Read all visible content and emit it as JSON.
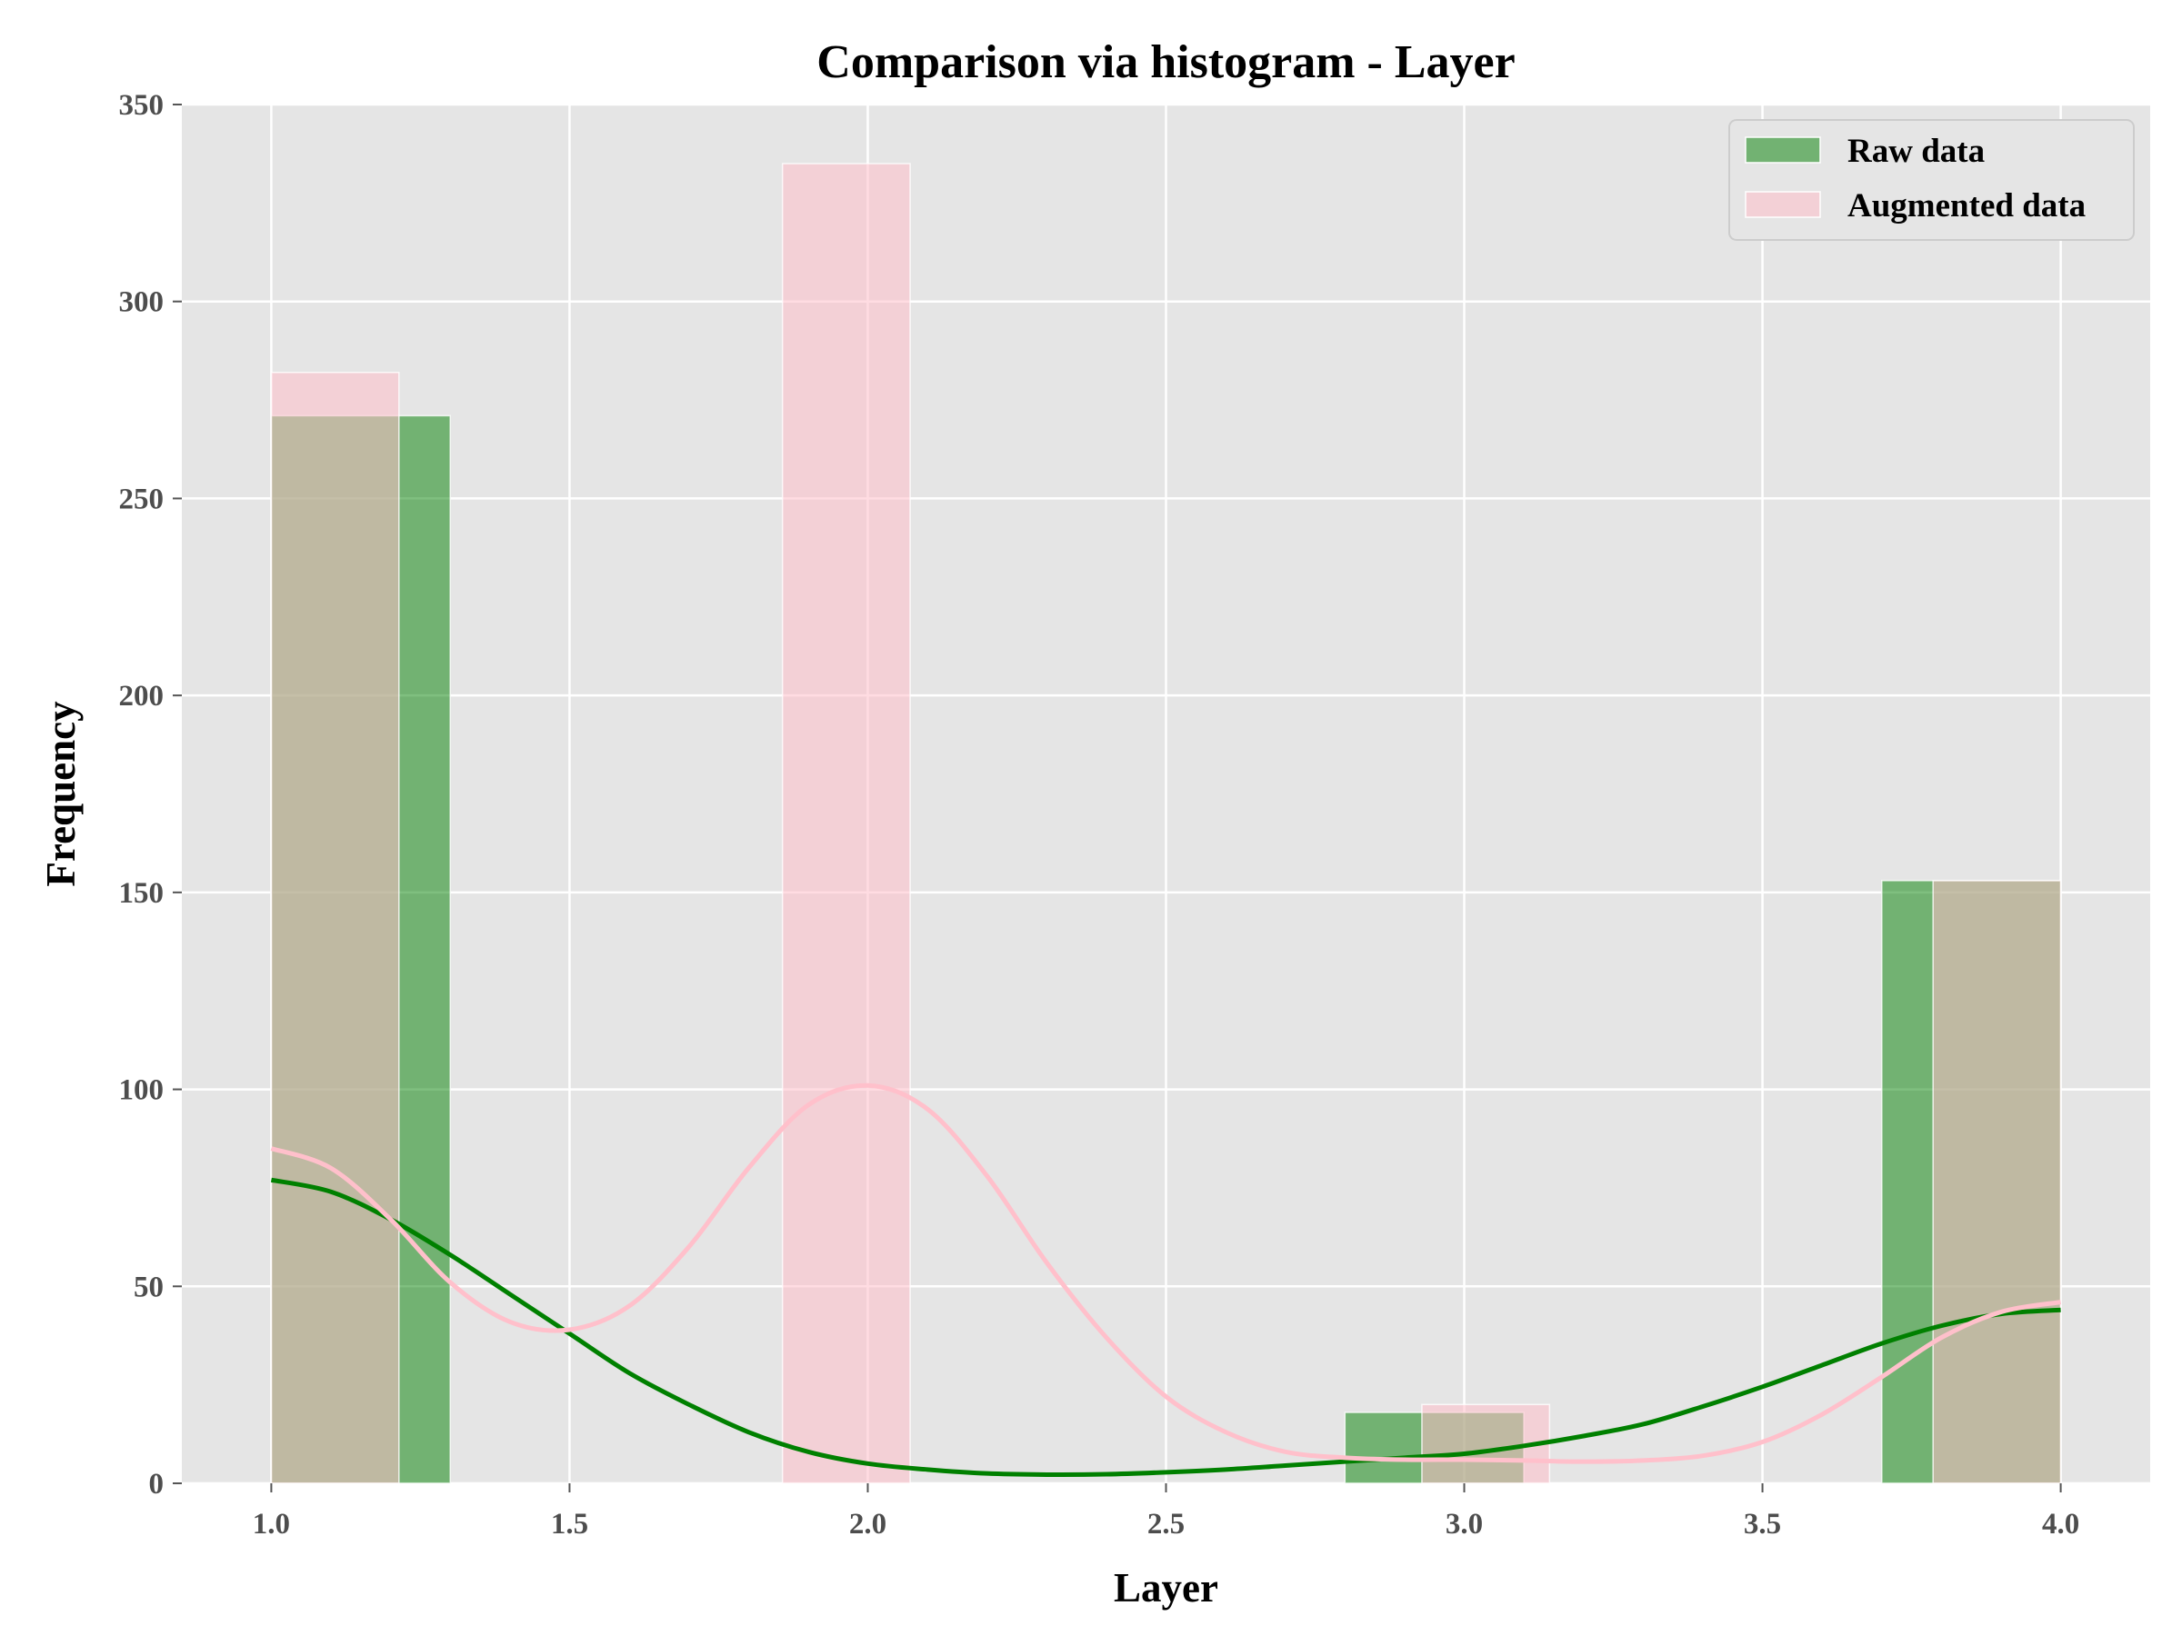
{
  "chart_data": {
    "type": "bar",
    "title": "Comparison via histogram - Layer",
    "xlabel": "Layer",
    "ylabel": "Frequency",
    "xlim": [
      0.85,
      4.15
    ],
    "ylim": [
      0,
      350
    ],
    "xticks": [
      "1.0",
      "1.5",
      "2.0",
      "2.5",
      "3.0",
      "3.5",
      "4.0"
    ],
    "yticks": [
      "0",
      "50",
      "100",
      "150",
      "200",
      "250",
      "300",
      "350"
    ],
    "grid": true,
    "legend_position": "top-right",
    "series": [
      {
        "name": "Raw data",
        "color": "#008000",
        "bars": [
          {
            "x0": 1.0,
            "x1": 1.3,
            "value": 271
          },
          {
            "x0": 2.8,
            "x1": 3.1,
            "value": 18
          },
          {
            "x0": 3.7,
            "x1": 4.0,
            "value": 153
          }
        ],
        "kde": [
          [
            1.0,
            77
          ],
          [
            1.1,
            74
          ],
          [
            1.2,
            67
          ],
          [
            1.3,
            58
          ],
          [
            1.4,
            48
          ],
          [
            1.5,
            38
          ],
          [
            1.6,
            28
          ],
          [
            1.7,
            20
          ],
          [
            1.8,
            13
          ],
          [
            1.9,
            8
          ],
          [
            2.0,
            5
          ],
          [
            2.1,
            3.5
          ],
          [
            2.2,
            2.5
          ],
          [
            2.3,
            2.2
          ],
          [
            2.4,
            2.3
          ],
          [
            2.5,
            2.8
          ],
          [
            2.6,
            3.5
          ],
          [
            2.7,
            4.5
          ],
          [
            2.8,
            5.5
          ],
          [
            2.9,
            6.5
          ],
          [
            3.0,
            7.5
          ],
          [
            3.1,
            9.5
          ],
          [
            3.2,
            12
          ],
          [
            3.3,
            15
          ],
          [
            3.4,
            19.5
          ],
          [
            3.5,
            24.5
          ],
          [
            3.6,
            30
          ],
          [
            3.7,
            35.5
          ],
          [
            3.8,
            40
          ],
          [
            3.9,
            43
          ],
          [
            4.0,
            44
          ]
        ]
      },
      {
        "name": "Augmented data",
        "color": "#ffc0cb",
        "bars": [
          {
            "x0": 1.0,
            "x1": 1.214,
            "value": 282
          },
          {
            "x0": 1.857,
            "x1": 2.071,
            "value": 335
          },
          {
            "x0": 2.929,
            "x1": 3.143,
            "value": 20
          },
          {
            "x0": 3.786,
            "x1": 4.0,
            "value": 153
          }
        ],
        "kde": [
          [
            1.0,
            85
          ],
          [
            1.1,
            80
          ],
          [
            1.2,
            67
          ],
          [
            1.3,
            51
          ],
          [
            1.4,
            41
          ],
          [
            1.5,
            39
          ],
          [
            1.6,
            45
          ],
          [
            1.7,
            60
          ],
          [
            1.8,
            80
          ],
          [
            1.9,
            96
          ],
          [
            2.0,
            101
          ],
          [
            2.1,
            95
          ],
          [
            2.2,
            78
          ],
          [
            2.3,
            56
          ],
          [
            2.4,
            37
          ],
          [
            2.5,
            22
          ],
          [
            2.6,
            13
          ],
          [
            2.7,
            8
          ],
          [
            2.8,
            6.5
          ],
          [
            2.9,
            6
          ],
          [
            3.0,
            6
          ],
          [
            3.1,
            5.8
          ],
          [
            3.2,
            5.5
          ],
          [
            3.3,
            5.8
          ],
          [
            3.4,
            7
          ],
          [
            3.5,
            10.5
          ],
          [
            3.6,
            17.5
          ],
          [
            3.7,
            27
          ],
          [
            3.8,
            37
          ],
          [
            3.9,
            43.5
          ],
          [
            4.0,
            46
          ]
        ]
      }
    ]
  }
}
